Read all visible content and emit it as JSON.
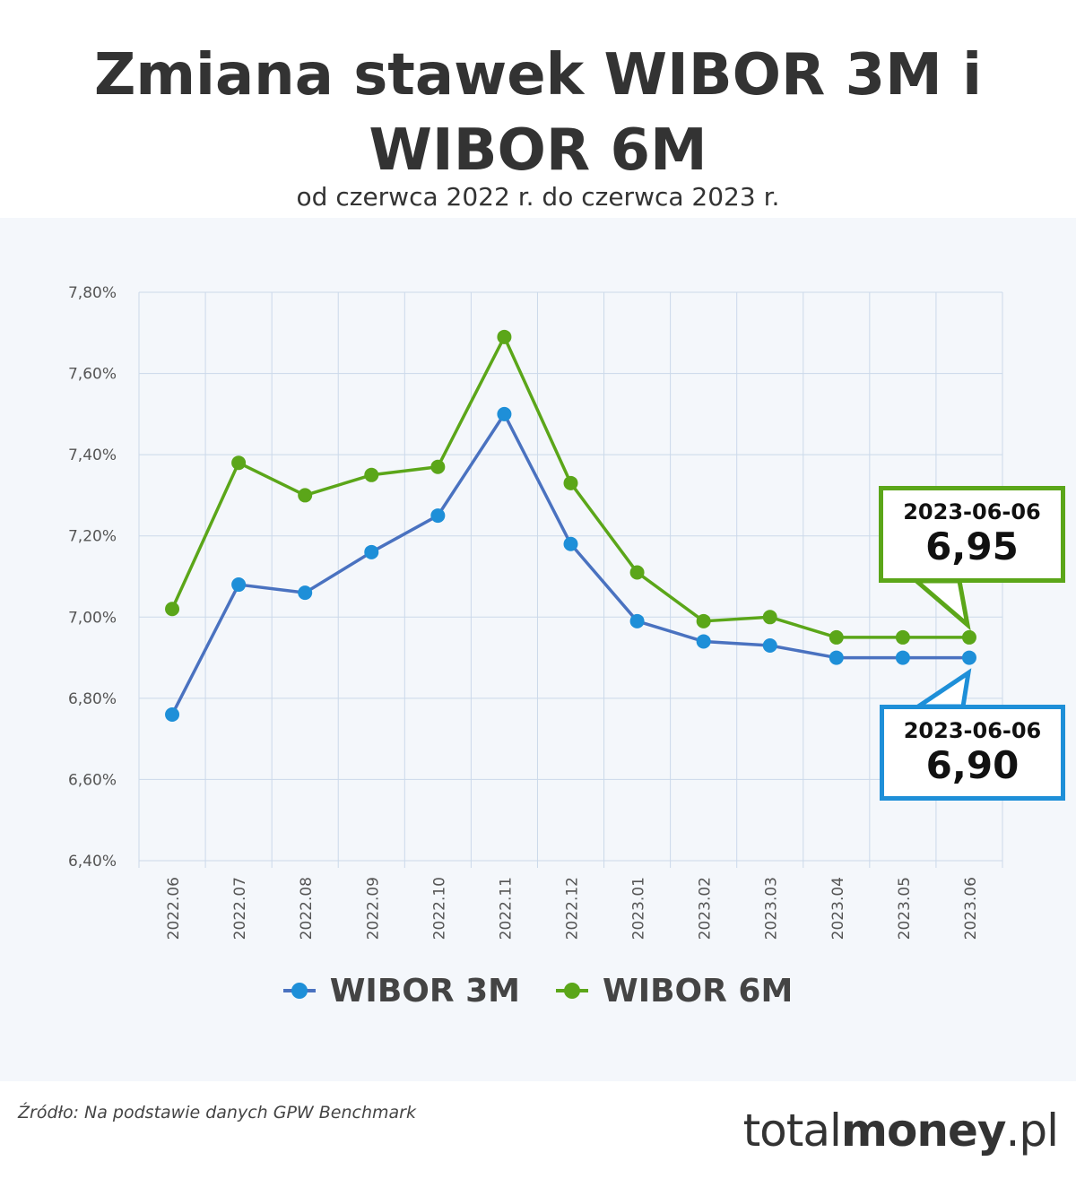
{
  "title_line1": "Zmiana stawek WIBOR 3M i",
  "title_line2": "WIBOR 6M",
  "subtitle": "od czerwca 2022 r. do czerwca 2023 r.",
  "source": "Źródło: Na podstawie danych GPW Benchmark",
  "brand": {
    "light": "total",
    "bold": "money",
    "tail": ".pl"
  },
  "chart_data": {
    "type": "line",
    "title": "Zmiana stawek WIBOR 3M i WIBOR 6M",
    "subtitle": "od czerwca 2022 r. do czerwca 2023 r.",
    "categories": [
      "2022.06",
      "2022.07",
      "2022.08",
      "2022.09",
      "2022.10",
      "2022.11",
      "2022.12",
      "2023.01",
      "2023.02",
      "2023.03",
      "2023.04",
      "2023.05",
      "2023.06"
    ],
    "series": [
      {
        "name": "WIBOR 3M",
        "color": "#1e8fd8",
        "line_color": "#4a72c0",
        "values": [
          6.76,
          7.08,
          7.06,
          7.16,
          7.25,
          7.5,
          7.18,
          6.99,
          6.94,
          6.93,
          6.9,
          6.9,
          6.9
        ]
      },
      {
        "name": "WIBOR 6M",
        "color": "#5ba619",
        "line_color": "#5ba619",
        "values": [
          7.02,
          7.38,
          7.3,
          7.35,
          7.37,
          7.69,
          7.33,
          7.11,
          6.99,
          7.0,
          6.95,
          6.95,
          6.95
        ]
      }
    ],
    "yticks": [
      "6,40%",
      "6,60%",
      "6,80%",
      "7,00%",
      "7,20%",
      "7,40%",
      "7,60%",
      "7,80%"
    ],
    "ylim": [
      6.4,
      7.8
    ],
    "grid": true,
    "legend": "bottom-center",
    "annotations": [
      {
        "series": "WIBOR 6M",
        "date": "2023-06-06",
        "value": "6,95",
        "color": "#5ba619"
      },
      {
        "series": "WIBOR 3M",
        "date": "2023-06-06",
        "value": "6,90",
        "color": "#1e8fd8"
      }
    ]
  }
}
